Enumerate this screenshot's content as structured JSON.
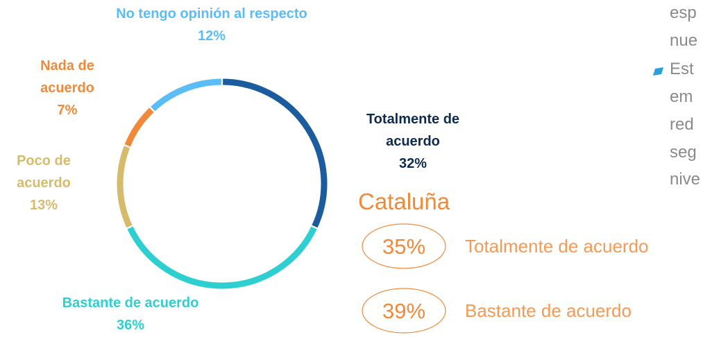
{
  "chart_data": {
    "type": "donut",
    "categories": [
      "Totalmente de acuerdo",
      "Bastante de acuerdo",
      "Poco de acuerdo",
      "Nada de acuerdo",
      "No tengo opinión al respecto"
    ],
    "values": [
      32,
      36,
      13,
      7,
      12
    ],
    "value_labels": [
      "32%",
      "36%",
      "13%",
      "7%",
      "12%"
    ],
    "colors": [
      "#1a5c9e",
      "#2ecfd1",
      "#d6bb6c",
      "#f08a3a",
      "#5bbdf5"
    ]
  },
  "cataluna": {
    "title": "Cataluña",
    "items": [
      {
        "value": "35%",
        "label": "Totalmente de acuerdo"
      },
      {
        "value": "39%",
        "label": "Bastante de acuerdo"
      }
    ]
  },
  "side_text": {
    "lines": [
      "esp",
      "nue",
      "Est",
      "em",
      "red",
      "seg",
      "nive"
    ]
  }
}
